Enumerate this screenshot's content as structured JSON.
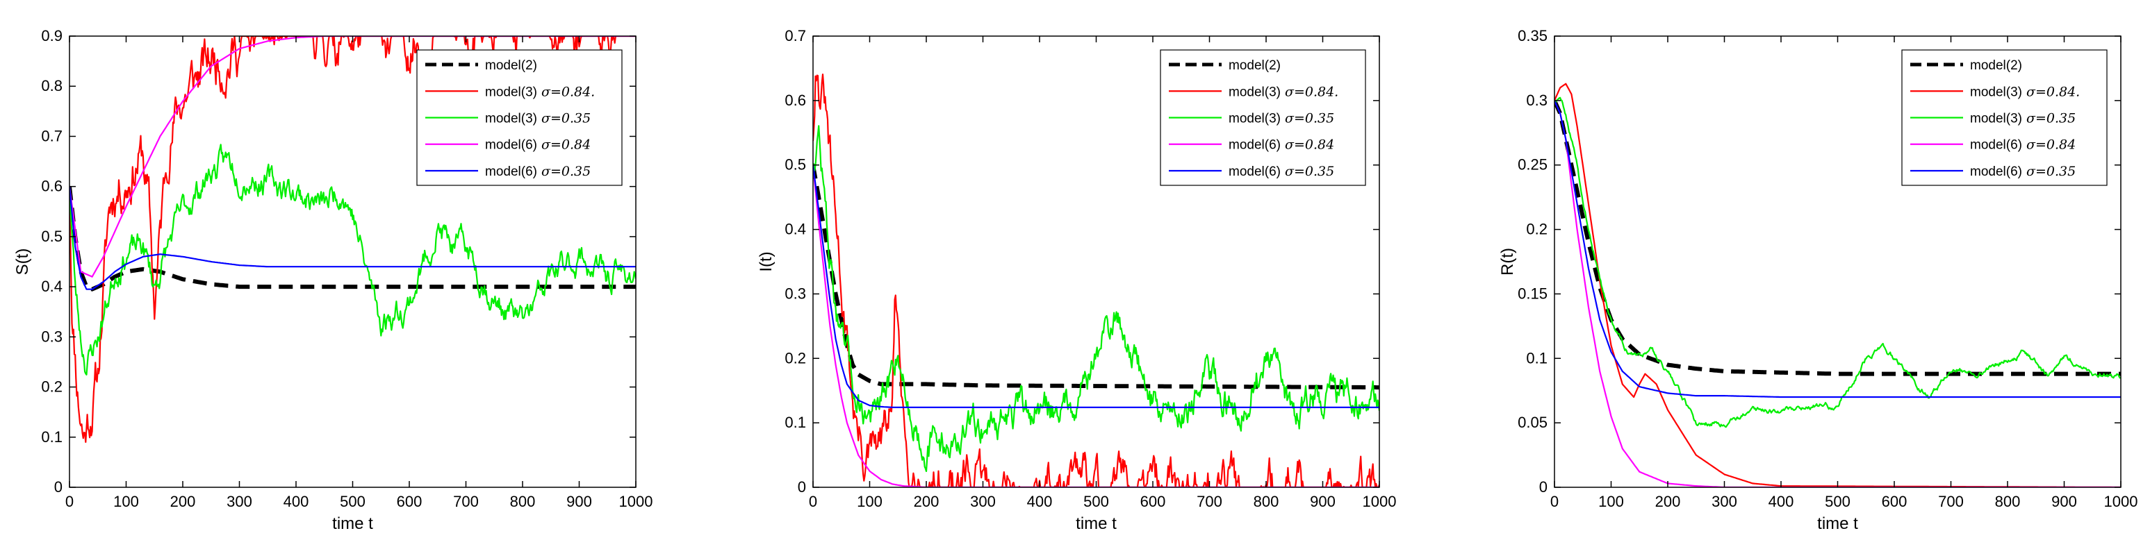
{
  "chart_data": [
    {
      "type": "line",
      "id": "S",
      "xlabel": "time t",
      "ylabel": "S(t)",
      "xlim": [
        0,
        1000
      ],
      "ylim": [
        0,
        0.9
      ],
      "xticks": [
        0,
        100,
        200,
        300,
        400,
        500,
        600,
        700,
        800,
        900,
        1000
      ],
      "xtick_labels": [
        "0",
        "100",
        "200",
        "300",
        "400",
        "500",
        "600",
        "700",
        "800",
        "900",
        "1000"
      ],
      "yticks": [
        0,
        0.1,
        0.2,
        0.3,
        0.4,
        0.5,
        0.6,
        0.7,
        0.8,
        0.9
      ],
      "ytick_labels": [
        "0",
        "0.1",
        "0.2",
        "0.3",
        "0.4",
        "0.5",
        "0.6",
        "0.7",
        "0.8",
        "0.9"
      ],
      "legend_position": "top-right",
      "legend": [
        {
          "label": "model(2)",
          "sigma": "",
          "color": "#000000",
          "dashed": true
        },
        {
          "label": "model(3)",
          "sigma": "σ=0.84.",
          "color": "#ff0000",
          "dashed": false
        },
        {
          "label": "model(3)",
          "sigma": "σ=0.35",
          "color": "#00ee00",
          "dashed": false
        },
        {
          "label": "model(6)",
          "sigma": "σ=0.84",
          "color": "#ff00ff",
          "dashed": false
        },
        {
          "label": "model(6)",
          "sigma": "σ=0.35",
          "color": "#0000ff",
          "dashed": false
        }
      ],
      "series": [
        {
          "name": "model(2)",
          "color": "#000000",
          "dashed": true,
          "noise": 0,
          "x": [
            0,
            10,
            20,
            30,
            40,
            60,
            80,
            100,
            130,
            160,
            200,
            250,
            300,
            400,
            500,
            1000
          ],
          "y": [
            0.6,
            0.5,
            0.43,
            0.4,
            0.395,
            0.405,
            0.42,
            0.43,
            0.435,
            0.43,
            0.415,
            0.405,
            0.4,
            0.4,
            0.4,
            0.4
          ]
        },
        {
          "name": "model(3) σ=0.84.",
          "color": "#ff0000",
          "dashed": false,
          "noise": 0.035,
          "seed": 11,
          "x": [
            0,
            5,
            15,
            25,
            35,
            50,
            60,
            70,
            80,
            100,
            120,
            130,
            140,
            150,
            160,
            175,
            200,
            250,
            300,
            350,
            400,
            450,
            500,
            1000
          ],
          "y": [
            0.6,
            0.35,
            0.2,
            0.11,
            0.15,
            0.22,
            0.4,
            0.55,
            0.6,
            0.62,
            0.66,
            0.66,
            0.56,
            0.36,
            0.5,
            0.7,
            0.78,
            0.85,
            0.88,
            0.895,
            0.9,
            0.9,
            0.9,
            0.9
          ]
        },
        {
          "name": "model(3) σ=0.35",
          "color": "#00ee00",
          "dashed": false,
          "noise": 0.018,
          "seed": 23,
          "x": [
            0,
            10,
            20,
            30,
            50,
            80,
            100,
            130,
            150,
            180,
            200,
            250,
            280,
            300,
            350,
            400,
            450,
            480,
            500,
            520,
            550,
            600,
            650,
            680,
            700,
            750,
            800,
            820,
            850,
            900,
            950,
            1000
          ],
          "y": [
            0.6,
            0.4,
            0.3,
            0.25,
            0.3,
            0.43,
            0.47,
            0.48,
            0.4,
            0.5,
            0.55,
            0.63,
            0.65,
            0.63,
            0.61,
            0.59,
            0.56,
            0.6,
            0.55,
            0.45,
            0.33,
            0.37,
            0.52,
            0.47,
            0.48,
            0.37,
            0.33,
            0.36,
            0.42,
            0.46,
            0.42,
            0.43
          ]
        },
        {
          "name": "model(6) σ=0.84",
          "color": "#ff00ff",
          "dashed": false,
          "noise": 0,
          "x": [
            0,
            20,
            40,
            60,
            80,
            100,
            130,
            160,
            200,
            250,
            300,
            350,
            400,
            450,
            500,
            1000
          ],
          "y": [
            0.6,
            0.43,
            0.42,
            0.46,
            0.51,
            0.56,
            0.63,
            0.7,
            0.77,
            0.84,
            0.875,
            0.89,
            0.897,
            0.9,
            0.9,
            0.9
          ]
        },
        {
          "name": "model(6) σ=0.35",
          "color": "#0000ff",
          "dashed": false,
          "noise": 0,
          "x": [
            0,
            10,
            20,
            30,
            40,
            60,
            80,
            100,
            130,
            160,
            200,
            250,
            300,
            350,
            400,
            500,
            1000
          ],
          "y": [
            0.6,
            0.48,
            0.42,
            0.395,
            0.395,
            0.41,
            0.43,
            0.445,
            0.46,
            0.465,
            0.46,
            0.45,
            0.443,
            0.44,
            0.44,
            0.44,
            0.44
          ]
        }
      ]
    },
    {
      "type": "line",
      "id": "I",
      "xlabel": "time t",
      "ylabel": "I(t)",
      "xlim": [
        0,
        1000
      ],
      "ylim": [
        0,
        0.7
      ],
      "xticks": [
        0,
        100,
        200,
        300,
        400,
        500,
        600,
        700,
        800,
        900,
        1000
      ],
      "xtick_labels": [
        "0",
        "100",
        "200",
        "300",
        "400",
        "500",
        "600",
        "700",
        "800",
        "900",
        "1000"
      ],
      "yticks": [
        0,
        0.1,
        0.2,
        0.3,
        0.4,
        0.5,
        0.6,
        0.7
      ],
      "ytick_labels": [
        "0",
        "0.1",
        "0.2",
        "0.3",
        "0.4",
        "0.5",
        "0.6",
        "0.7"
      ],
      "legend_position": "top-right",
      "legend": [
        {
          "label": "model(2)",
          "sigma": "",
          "color": "#000000",
          "dashed": true
        },
        {
          "label": "model(3)",
          "sigma": "σ=0.84.",
          "color": "#ff0000",
          "dashed": false
        },
        {
          "label": "model(3)",
          "sigma": "σ=0.35",
          "color": "#00ee00",
          "dashed": false
        },
        {
          "label": "model(6)",
          "sigma": "σ=0.84",
          "color": "#ff00ff",
          "dashed": false
        },
        {
          "label": "model(6)",
          "sigma": "σ=0.35",
          "color": "#0000ff",
          "dashed": false
        }
      ],
      "series": [
        {
          "name": "model(2)",
          "color": "#000000",
          "dashed": true,
          "noise": 0,
          "x": [
            0,
            10,
            20,
            30,
            40,
            50,
            60,
            70,
            80,
            100,
            120,
            140,
            160,
            200,
            300,
            1000
          ],
          "y": [
            0.5,
            0.45,
            0.4,
            0.35,
            0.3,
            0.26,
            0.22,
            0.19,
            0.175,
            0.165,
            0.16,
            0.16,
            0.16,
            0.16,
            0.158,
            0.155
          ]
        },
        {
          "name": "model(3) σ=0.84.",
          "color": "#ff0000",
          "dashed": false,
          "noise": 0.025,
          "seed": 31,
          "x": [
            0,
            5,
            10,
            20,
            30,
            40,
            50,
            60,
            70,
            80,
            90,
            100,
            120,
            140,
            145,
            150,
            155,
            165,
            180,
            200,
            220,
            240,
            1000
          ],
          "y": [
            0.55,
            0.68,
            0.63,
            0.6,
            0.5,
            0.4,
            0.32,
            0.22,
            0.14,
            0.08,
            0.05,
            0.04,
            0.06,
            0.12,
            0.3,
            0.25,
            0.12,
            0.06,
            0.03,
            0.01,
            0.003,
            0,
            0
          ]
        },
        {
          "name": "model(3) σ=0.35",
          "color": "#00ee00",
          "dashed": false,
          "noise": 0.018,
          "seed": 47,
          "x": [
            0,
            10,
            20,
            30,
            50,
            70,
            90,
            110,
            130,
            150,
            170,
            200,
            250,
            300,
            350,
            400,
            450,
            500,
            520,
            540,
            560,
            600,
            650,
            700,
            750,
            800,
            850,
            900,
            950,
            1000
          ],
          "y": [
            0.5,
            0.55,
            0.45,
            0.35,
            0.22,
            0.16,
            0.12,
            0.11,
            0.14,
            0.22,
            0.12,
            0.07,
            0.07,
            0.1,
            0.11,
            0.12,
            0.13,
            0.2,
            0.25,
            0.26,
            0.22,
            0.13,
            0.12,
            0.17,
            0.12,
            0.2,
            0.12,
            0.15,
            0.14,
            0.14
          ]
        },
        {
          "name": "model(6) σ=0.84",
          "color": "#ff00ff",
          "dashed": false,
          "noise": 0,
          "x": [
            0,
            10,
            20,
            30,
            40,
            50,
            60,
            80,
            100,
            120,
            140,
            160,
            200,
            1000
          ],
          "y": [
            0.5,
            0.41,
            0.33,
            0.25,
            0.19,
            0.14,
            0.1,
            0.05,
            0.025,
            0.012,
            0.005,
            0.002,
            0,
            0
          ]
        },
        {
          "name": "model(6) σ=0.35",
          "color": "#0000ff",
          "dashed": false,
          "noise": 0,
          "x": [
            0,
            10,
            20,
            30,
            40,
            50,
            60,
            80,
            100,
            120,
            140,
            160,
            200,
            300,
            1000
          ],
          "y": [
            0.5,
            0.43,
            0.36,
            0.29,
            0.23,
            0.19,
            0.16,
            0.135,
            0.127,
            0.125,
            0.124,
            0.124,
            0.124,
            0.124,
            0.124
          ]
        }
      ]
    },
    {
      "type": "line",
      "id": "R",
      "xlabel": "time t",
      "ylabel": "R(t)",
      "xlim": [
        0,
        1000
      ],
      "ylim": [
        0,
        0.35
      ],
      "xticks": [
        0,
        100,
        200,
        300,
        400,
        500,
        600,
        700,
        800,
        900,
        1000
      ],
      "xtick_labels": [
        "0",
        "100",
        "200",
        "300",
        "400",
        "500",
        "600",
        "700",
        "800",
        "900",
        "1000"
      ],
      "yticks": [
        0,
        0.05,
        0.1,
        0.15,
        0.2,
        0.25,
        0.3,
        0.35
      ],
      "ytick_labels": [
        "0",
        "0.05",
        "0.1",
        "0.15",
        "0.2",
        "0.25",
        "0.3",
        "0.35"
      ],
      "legend_position": "top-right",
      "legend": [
        {
          "label": "model(2)",
          "sigma": "",
          "color": "#000000",
          "dashed": true
        },
        {
          "label": "model(3)",
          "sigma": "σ=0.84.",
          "color": "#ff0000",
          "dashed": false
        },
        {
          "label": "model(3)",
          "sigma": "σ=0.35",
          "color": "#00ee00",
          "dashed": false
        },
        {
          "label": "model(6)",
          "sigma": "σ=0.84",
          "color": "#ff00ff",
          "dashed": false
        },
        {
          "label": "model(6)",
          "sigma": "σ=0.35",
          "color": "#0000ff",
          "dashed": false
        }
      ],
      "series": [
        {
          "name": "model(2)",
          "color": "#000000",
          "dashed": true,
          "noise": 0,
          "x": [
            0,
            10,
            20,
            40,
            60,
            80,
            100,
            120,
            150,
            200,
            250,
            300,
            400,
            500,
            1000
          ],
          "y": [
            0.3,
            0.29,
            0.27,
            0.23,
            0.19,
            0.155,
            0.13,
            0.115,
            0.103,
            0.095,
            0.092,
            0.09,
            0.089,
            0.088,
            0.088
          ]
        },
        {
          "name": "model(3) σ=0.84.",
          "color": "#ff0000",
          "dashed": false,
          "noise": 0,
          "x": [
            0,
            10,
            20,
            30,
            40,
            60,
            80,
            100,
            120,
            140,
            150,
            160,
            180,
            200,
            250,
            300,
            350,
            400,
            1000
          ],
          "y": [
            0.3,
            0.31,
            0.313,
            0.305,
            0.28,
            0.22,
            0.16,
            0.11,
            0.08,
            0.07,
            0.08,
            0.088,
            0.08,
            0.06,
            0.025,
            0.01,
            0.003,
            0.001,
            0
          ]
        },
        {
          "name": "model(3) σ=0.35",
          "color": "#00ee00",
          "dashed": false,
          "noise": 0.0015,
          "seed": 59,
          "x": [
            0,
            10,
            20,
            40,
            60,
            80,
            100,
            130,
            150,
            170,
            200,
            250,
            300,
            350,
            400,
            450,
            500,
            550,
            580,
            620,
            660,
            700,
            750,
            800,
            830,
            870,
            900,
            950,
            1000
          ],
          "y": [
            0.3,
            0.3,
            0.29,
            0.25,
            0.2,
            0.16,
            0.13,
            0.105,
            0.1,
            0.11,
            0.09,
            0.05,
            0.05,
            0.06,
            0.06,
            0.063,
            0.063,
            0.1,
            0.11,
            0.09,
            0.07,
            0.09,
            0.09,
            0.1,
            0.105,
            0.087,
            0.1,
            0.09,
            0.085
          ]
        },
        {
          "name": "model(6) σ=0.84",
          "color": "#ff00ff",
          "dashed": false,
          "noise": 0,
          "x": [
            0,
            10,
            20,
            40,
            60,
            80,
            100,
            120,
            150,
            200,
            250,
            300,
            1000
          ],
          "y": [
            0.3,
            0.29,
            0.27,
            0.2,
            0.14,
            0.09,
            0.055,
            0.03,
            0.012,
            0.003,
            0.001,
            0,
            0
          ]
        },
        {
          "name": "model(6) σ=0.35",
          "color": "#0000ff",
          "dashed": false,
          "noise": 0,
          "x": [
            0,
            10,
            20,
            40,
            60,
            80,
            100,
            120,
            150,
            200,
            250,
            300,
            400,
            500,
            1000
          ],
          "y": [
            0.3,
            0.29,
            0.27,
            0.22,
            0.17,
            0.13,
            0.105,
            0.09,
            0.078,
            0.073,
            0.071,
            0.071,
            0.07,
            0.07,
            0.07
          ]
        }
      ]
    }
  ]
}
